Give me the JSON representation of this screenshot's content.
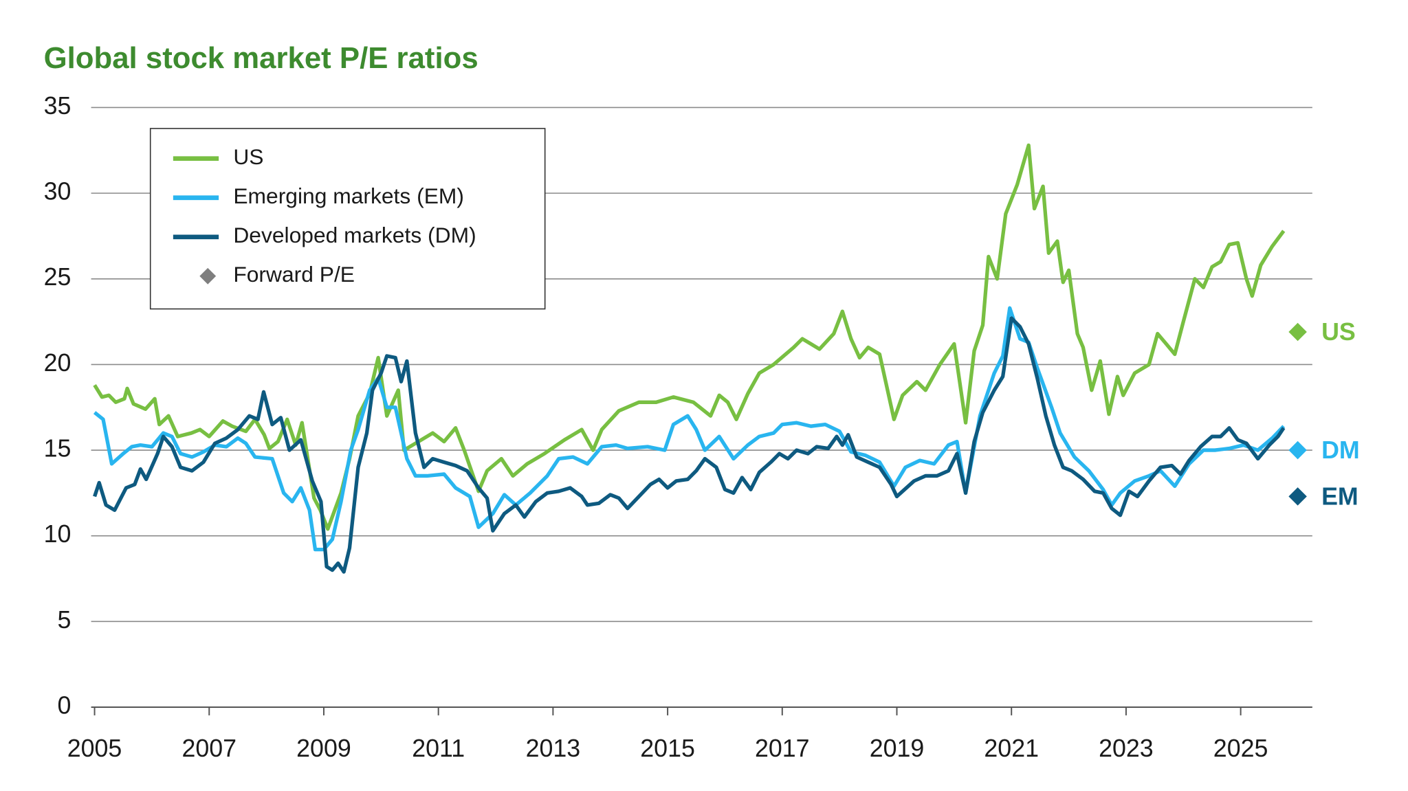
{
  "chart_data": {
    "type": "line",
    "title": "Global stock market P/E ratios",
    "xlim": [
      2004.94,
      2026.25
    ],
    "xticks": [
      2005,
      2007,
      2009,
      2011,
      2013,
      2015,
      2017,
      2019,
      2021,
      2023,
      2025
    ],
    "ylim": [
      0,
      35
    ],
    "yticks": [
      0,
      5,
      10,
      15,
      20,
      25,
      30,
      35
    ],
    "grid": true,
    "legend": "upper-left",
    "series": [
      {
        "name": "US",
        "color": "#78bf42",
        "x": [
          2005.0,
          2005.13,
          2005.25,
          2005.37,
          2005.52,
          2005.57,
          2005.68,
          2005.89,
          2006.05,
          2006.13,
          2006.29,
          2006.45,
          2006.69,
          2006.84,
          2007.0,
          2007.24,
          2007.4,
          2007.64,
          2007.8,
          2007.96,
          2008.05,
          2008.2,
          2008.36,
          2008.51,
          2008.62,
          2008.83,
          2008.94,
          2009.07,
          2009.3,
          2009.45,
          2009.6,
          2009.8,
          2009.95,
          2010.1,
          2010.3,
          2010.4,
          2010.65,
          2010.9,
          2011.1,
          2011.3,
          2011.45,
          2011.7,
          2011.85,
          2012.1,
          2012.3,
          2012.55,
          2012.85,
          2013.2,
          2013.5,
          2013.7,
          2013.85,
          2014.15,
          2014.5,
          2014.8,
          2015.1,
          2015.45,
          2015.75,
          2015.9,
          2016.05,
          2016.2,
          2016.4,
          2016.6,
          2016.85,
          2017.2,
          2017.35,
          2017.5,
          2017.65,
          2017.9,
          2018.05,
          2018.2,
          2018.35,
          2018.5,
          2018.7,
          2018.95,
          2019.1,
          2019.35,
          2019.5,
          2019.75,
          2020.0,
          2020.2,
          2020.35,
          2020.5,
          2020.6,
          2020.75,
          2020.9,
          2021.1,
          2021.3,
          2021.4,
          2021.55,
          2021.65,
          2021.8,
          2021.9,
          2022.0,
          2022.15,
          2022.25,
          2022.4,
          2022.55,
          2022.7,
          2022.85,
          2022.95,
          2023.15,
          2023.4,
          2023.55,
          2023.7,
          2023.85,
          2024.0,
          2024.2,
          2024.35,
          2024.5,
          2024.65,
          2024.8,
          2024.95,
          2025.1,
          2025.2,
          2025.35,
          2025.55,
          2025.75
        ],
        "values": [
          18.8,
          18.1,
          18.2,
          17.8,
          18.0,
          18.6,
          17.7,
          17.4,
          18.0,
          16.5,
          17.0,
          15.8,
          16.0,
          16.2,
          15.8,
          16.7,
          16.4,
          16.1,
          16.8,
          15.9,
          15.1,
          15.5,
          16.8,
          15.3,
          16.6,
          12.2,
          11.5,
          10.4,
          12.5,
          14.5,
          17.0,
          18.3,
          20.4,
          17.0,
          18.5,
          15.0,
          15.5,
          16.0,
          15.5,
          16.3,
          15.0,
          12.6,
          13.8,
          14.5,
          13.5,
          14.2,
          14.8,
          15.6,
          16.2,
          15.0,
          16.2,
          17.3,
          17.8,
          17.8,
          18.1,
          17.8,
          17.0,
          18.2,
          17.8,
          16.8,
          18.3,
          19.5,
          20.0,
          21.0,
          21.5,
          21.2,
          20.9,
          21.8,
          23.1,
          21.5,
          20.4,
          21.0,
          20.6,
          16.8,
          18.2,
          19.0,
          18.5,
          20.0,
          21.2,
          16.6,
          20.8,
          22.3,
          26.3,
          25.0,
          28.8,
          30.5,
          32.8,
          29.1,
          30.4,
          26.5,
          27.2,
          24.8,
          25.5,
          21.8,
          21.0,
          18.5,
          20.2,
          17.1,
          19.3,
          18.2,
          19.5,
          20.0,
          21.8,
          21.2,
          20.6,
          22.5,
          25.0,
          24.5,
          25.7,
          26.0,
          27.0,
          27.1,
          25.0,
          24.0,
          25.8,
          26.9,
          27.8
        ]
      },
      {
        "name": "Emerging markets (EM)",
        "color": "#29b5ef",
        "x": [
          2005.0,
          2005.15,
          2005.3,
          2005.5,
          2005.65,
          2005.8,
          2006.0,
          2006.2,
          2006.35,
          2006.5,
          2006.7,
          2006.9,
          2007.1,
          2007.3,
          2007.5,
          2007.64,
          2007.8,
          2008.1,
          2008.3,
          2008.45,
          2008.6,
          2008.75,
          2008.85,
          2009.0,
          2009.15,
          2009.3,
          2009.47,
          2009.6,
          2009.8,
          2009.95,
          2010.1,
          2010.25,
          2010.45,
          2010.6,
          2010.8,
          2011.1,
          2011.3,
          2011.55,
          2011.7,
          2011.95,
          2012.15,
          2012.35,
          2012.6,
          2012.9,
          2013.1,
          2013.35,
          2013.6,
          2013.85,
          2014.1,
          2014.3,
          2014.65,
          2014.95,
          2015.1,
          2015.35,
          2015.5,
          2015.65,
          2015.9,
          2016.15,
          2016.4,
          2016.6,
          2016.85,
          2017.0,
          2017.25,
          2017.5,
          2017.75,
          2018.0,
          2018.2,
          2018.45,
          2018.7,
          2018.95,
          2019.15,
          2019.4,
          2019.65,
          2019.9,
          2020.05,
          2020.2,
          2020.45,
          2020.7,
          2020.85,
          2020.97,
          2021.15,
          2021.3,
          2021.45,
          2021.7,
          2021.85,
          2022.1,
          2022.35,
          2022.6,
          2022.75,
          2022.9,
          2023.15,
          2023.4,
          2023.6,
          2023.85,
          2024.1,
          2024.35,
          2024.55,
          2024.8,
          2025.05,
          2025.3,
          2025.55,
          2025.75
        ],
        "values": [
          17.2,
          16.8,
          14.2,
          14.8,
          15.2,
          15.3,
          15.2,
          16.0,
          15.8,
          14.8,
          14.6,
          14.9,
          15.3,
          15.2,
          15.7,
          15.4,
          14.6,
          14.5,
          12.5,
          12.0,
          12.8,
          11.5,
          9.2,
          9.2,
          9.8,
          12.0,
          15.0,
          16.2,
          18.5,
          19.2,
          17.5,
          17.5,
          14.5,
          13.5,
          13.5,
          13.6,
          12.8,
          12.3,
          10.5,
          11.3,
          12.4,
          11.8,
          12.5,
          13.5,
          14.5,
          14.6,
          14.2,
          15.2,
          15.3,
          15.1,
          15.2,
          15.0,
          16.5,
          17.0,
          16.2,
          15.0,
          15.8,
          14.5,
          15.3,
          15.8,
          16.0,
          16.5,
          16.6,
          16.4,
          16.5,
          16.1,
          14.9,
          14.7,
          14.3,
          12.9,
          14.0,
          14.4,
          14.2,
          15.3,
          15.5,
          12.5,
          17.0,
          19.5,
          20.5,
          23.3,
          21.5,
          21.3,
          19.8,
          17.5,
          16.0,
          14.6,
          13.8,
          12.7,
          11.8,
          12.5,
          13.2,
          13.5,
          13.8,
          12.9,
          14.2,
          15.0,
          15.0,
          15.1,
          15.3,
          15.0,
          15.7,
          16.4
        ]
      },
      {
        "name": "Developed markets (DM)",
        "color": "#0e5a80",
        "x": [
          2005.0,
          2005.08,
          2005.2,
          2005.35,
          2005.55,
          2005.7,
          2005.8,
          2005.9,
          2006.1,
          2006.2,
          2006.35,
          2006.5,
          2006.7,
          2006.9,
          2007.1,
          2007.3,
          2007.5,
          2007.7,
          2007.85,
          2007.95,
          2008.1,
          2008.25,
          2008.4,
          2008.6,
          2008.8,
          2008.95,
          2009.05,
          2009.15,
          2009.25,
          2009.35,
          2009.45,
          2009.6,
          2009.75,
          2009.85,
          2010.0,
          2010.1,
          2010.25,
          2010.35,
          2010.45,
          2010.6,
          2010.75,
          2010.9,
          2011.1,
          2011.3,
          2011.5,
          2011.7,
          2011.85,
          2011.95,
          2012.15,
          2012.35,
          2012.5,
          2012.7,
          2012.9,
          2013.1,
          2013.3,
          2013.5,
          2013.6,
          2013.8,
          2014.0,
          2014.15,
          2014.3,
          2014.5,
          2014.7,
          2014.85,
          2015.0,
          2015.15,
          2015.35,
          2015.5,
          2015.65,
          2015.85,
          2016.0,
          2016.15,
          2016.3,
          2016.45,
          2016.6,
          2016.8,
          2016.95,
          2017.1,
          2017.25,
          2017.45,
          2017.6,
          2017.8,
          2017.95,
          2018.05,
          2018.15,
          2018.3,
          2018.5,
          2018.7,
          2018.9,
          2019.0,
          2019.1,
          2019.3,
          2019.5,
          2019.7,
          2019.9,
          2020.05,
          2020.2,
          2020.35,
          2020.5,
          2020.7,
          2020.85,
          2021.0,
          2021.15,
          2021.3,
          2021.45,
          2021.6,
          2021.75,
          2021.9,
          2022.05,
          2022.25,
          2022.45,
          2022.6,
          2022.75,
          2022.9,
          2023.05,
          2023.2,
          2023.4,
          2023.6,
          2023.8,
          2023.95,
          2024.1,
          2024.3,
          2024.5,
          2024.65,
          2024.8,
          2024.95,
          2025.1,
          2025.3,
          2025.5,
          2025.65,
          2025.75
        ],
        "values": [
          12.3,
          13.1,
          11.8,
          11.5,
          12.8,
          13.0,
          13.9,
          13.3,
          14.8,
          15.8,
          15.2,
          14.0,
          13.8,
          14.3,
          15.4,
          15.7,
          16.2,
          17.0,
          16.8,
          18.4,
          16.5,
          16.9,
          15.0,
          15.6,
          13.2,
          12.0,
          8.2,
          8.0,
          8.4,
          7.9,
          9.3,
          14.0,
          16.0,
          18.5,
          19.5,
          20.5,
          20.4,
          19.0,
          20.2,
          16.0,
          14.0,
          14.5,
          14.3,
          14.1,
          13.8,
          12.8,
          12.2,
          10.3,
          11.3,
          11.8,
          11.1,
          12.0,
          12.5,
          12.6,
          12.8,
          12.3,
          11.8,
          11.9,
          12.4,
          12.2,
          11.6,
          12.3,
          13.0,
          13.3,
          12.8,
          13.2,
          13.3,
          13.8,
          14.5,
          14.0,
          12.7,
          12.5,
          13.4,
          12.7,
          13.7,
          14.3,
          14.8,
          14.5,
          15.0,
          14.8,
          15.2,
          15.1,
          15.8,
          15.3,
          15.9,
          14.6,
          14.3,
          14.0,
          13.0,
          12.3,
          12.6,
          13.2,
          13.5,
          13.5,
          13.8,
          14.8,
          12.5,
          15.5,
          17.2,
          18.5,
          19.3,
          22.7,
          22.2,
          21.2,
          19.2,
          17.0,
          15.3,
          14.0,
          13.8,
          13.3,
          12.6,
          12.5,
          11.6,
          11.2,
          12.6,
          12.3,
          13.2,
          14.0,
          14.1,
          13.6,
          14.4,
          15.2,
          15.8,
          15.8,
          16.3,
          15.6,
          15.4,
          14.5,
          15.3,
          15.8,
          16.3
        ]
      }
    ],
    "forward_pe_legend": "Forward P/E",
    "forward_pe_legend_color": "#7f7f7f",
    "forward_pe": [
      {
        "label": "US",
        "value": 21.9,
        "color": "#78bf42"
      },
      {
        "label": "DM",
        "value": 15.0,
        "color": "#29b5ef"
      },
      {
        "label": "EM",
        "value": 12.3,
        "color": "#0e5a80"
      }
    ]
  }
}
